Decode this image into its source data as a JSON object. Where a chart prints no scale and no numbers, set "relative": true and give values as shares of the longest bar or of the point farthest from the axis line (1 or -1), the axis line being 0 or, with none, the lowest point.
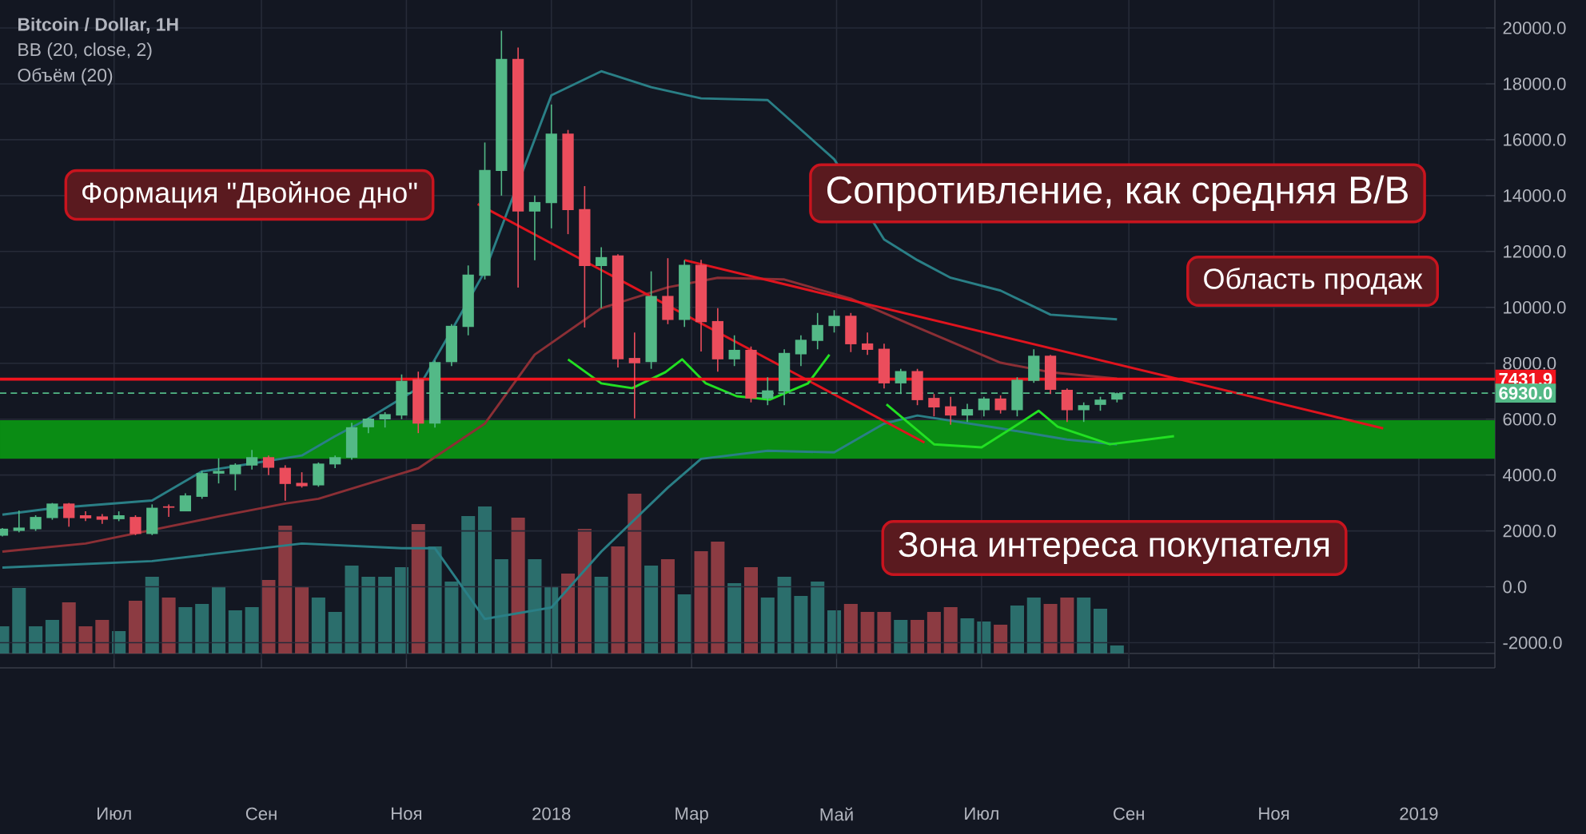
{
  "chart_data": [
    {
      "type": "candlestick",
      "title": "Bitcoin / Dollar, 1H",
      "x": [
        "2017-05-15",
        "2017-05-22",
        "2017-05-29",
        "2017-06-05",
        "2017-06-12",
        "2017-06-19",
        "2017-06-26",
        "2017-07-03",
        "2017-07-10",
        "2017-07-17",
        "2017-07-24",
        "2017-07-31",
        "2017-08-07",
        "2017-08-14",
        "2017-08-21",
        "2017-08-28",
        "2017-09-04",
        "2017-09-11",
        "2017-09-18",
        "2017-09-25",
        "2017-10-02",
        "2017-10-09",
        "2017-10-16",
        "2017-10-23",
        "2017-10-30",
        "2017-11-06",
        "2017-11-13",
        "2017-11-20",
        "2017-11-27",
        "2017-12-04",
        "2017-12-11",
        "2017-12-18",
        "2017-12-25",
        "2018-01-01",
        "2018-01-08",
        "2018-01-15",
        "2018-01-22",
        "2018-01-29",
        "2018-02-05",
        "2018-02-12",
        "2018-02-19",
        "2018-02-26",
        "2018-03-05",
        "2018-03-12",
        "2018-03-19",
        "2018-03-26",
        "2018-04-02",
        "2018-04-09",
        "2018-04-16",
        "2018-04-23",
        "2018-04-30",
        "2018-05-07",
        "2018-05-14",
        "2018-05-21",
        "2018-05-28",
        "2018-06-04",
        "2018-06-11",
        "2018-06-18",
        "2018-06-25",
        "2018-07-02",
        "2018-07-09",
        "2018-07-16",
        "2018-07-23",
        "2018-07-30",
        "2018-08-06",
        "2018-08-13",
        "2018-08-20",
        "2018-08-27"
      ],
      "ohlc": [
        [
          1830,
          2100,
          1800,
          2080
        ],
        [
          2000,
          2730,
          1950,
          2120
        ],
        [
          2060,
          2560,
          2000,
          2500
        ],
        [
          2460,
          3000,
          2400,
          2980
        ],
        [
          2980,
          3000,
          2150,
          2460
        ],
        [
          2560,
          2700,
          2350,
          2450
        ],
        [
          2520,
          2600,
          2250,
          2400
        ],
        [
          2420,
          2700,
          2350,
          2560
        ],
        [
          2500,
          2560,
          1850,
          1890
        ],
        [
          1890,
          2950,
          1850,
          2830
        ],
        [
          2880,
          2950,
          2500,
          2830
        ],
        [
          2700,
          3350,
          2700,
          3270
        ],
        [
          3220,
          4150,
          3150,
          4070
        ],
        [
          4050,
          4600,
          3700,
          4150
        ],
        [
          4030,
          4420,
          3450,
          4370
        ],
        [
          4340,
          4900,
          4200,
          4640
        ],
        [
          4640,
          4700,
          4000,
          4260
        ],
        [
          4260,
          4350,
          3080,
          3680
        ],
        [
          3720,
          4100,
          3550,
          3600
        ],
        [
          3630,
          4450,
          3580,
          4410
        ],
        [
          4380,
          4700,
          4250,
          4640
        ],
        [
          4620,
          5870,
          4550,
          5710
        ],
        [
          5710,
          6050,
          5500,
          6020
        ],
        [
          5990,
          6250,
          5700,
          6180
        ],
        [
          6130,
          7600,
          6000,
          7370
        ],
        [
          7430,
          7700,
          5500,
          5840
        ],
        [
          5840,
          8100,
          5700,
          8040
        ],
        [
          8040,
          9400,
          7900,
          9340
        ],
        [
          9300,
          11500,
          9000,
          11170
        ],
        [
          11130,
          15900,
          11000,
          14920
        ],
        [
          14880,
          19900,
          14000,
          18890
        ],
        [
          18890,
          19300,
          10710,
          13430
        ],
        [
          13430,
          14000,
          11690,
          13770
        ],
        [
          13730,
          17260,
          12830,
          16220
        ],
        [
          16220,
          16350,
          12620,
          13480
        ],
        [
          13520,
          14340,
          9280,
          11480
        ],
        [
          11480,
          12150,
          9970,
          11800
        ],
        [
          11860,
          11900,
          7850,
          8140
        ],
        [
          8190,
          9100,
          6030,
          8000
        ],
        [
          8040,
          11290,
          7800,
          10410
        ],
        [
          10410,
          11760,
          9400,
          9550
        ],
        [
          9550,
          11690,
          9300,
          11520
        ],
        [
          11520,
          11700,
          8420,
          9470
        ],
        [
          9510,
          9970,
          7700,
          8140
        ],
        [
          8140,
          9000,
          7900,
          8480
        ],
        [
          8480,
          8600,
          6600,
          6740
        ],
        [
          6740,
          7500,
          6500,
          7030
        ],
        [
          6990,
          8500,
          6500,
          8370
        ],
        [
          8320,
          9000,
          7900,
          8840
        ],
        [
          8800,
          9800,
          8500,
          9370
        ],
        [
          9330,
          9900,
          9100,
          9700
        ],
        [
          9700,
          9800,
          8400,
          8680
        ],
        [
          8710,
          9100,
          8300,
          8480
        ],
        [
          8520,
          8700,
          7100,
          7280
        ],
        [
          7280,
          7800,
          6900,
          7720
        ],
        [
          7720,
          7800,
          6500,
          6680
        ],
        [
          6760,
          6900,
          6100,
          6420
        ],
        [
          6460,
          6800,
          5800,
          6130
        ],
        [
          6130,
          6550,
          5900,
          6360
        ],
        [
          6320,
          6800,
          6100,
          6740
        ],
        [
          6740,
          6850,
          6200,
          6320
        ],
        [
          6320,
          7500,
          6100,
          7410
        ],
        [
          7370,
          8500,
          7300,
          8270
        ],
        [
          8270,
          8300,
          6900,
          7050
        ],
        [
          7050,
          7100,
          5900,
          6320
        ],
        [
          6320,
          6600,
          5900,
          6500
        ],
        [
          6510,
          6800,
          6300,
          6700
        ],
        [
          6700,
          6950,
          6600,
          6930
        ]
      ],
      "colors": [
        "#53b987",
        "#53b987",
        "#53b987",
        "#53b987",
        "#eb4d5c",
        "#eb4d5c",
        "#eb4d5c",
        "#53b987",
        "#eb4d5c",
        "#53b987",
        "#eb4d5c",
        "#53b987",
        "#53b987",
        "#53b987",
        "#53b987",
        "#53b987",
        "#eb4d5c",
        "#eb4d5c",
        "#eb4d5c",
        "#53b987",
        "#53b987",
        "#53b987",
        "#53b987",
        "#53b987",
        "#53b987",
        "#eb4d5c",
        "#53b987",
        "#53b987",
        "#53b987",
        "#53b987",
        "#53b987",
        "#eb4d5c",
        "#53b987",
        "#53b987",
        "#eb4d5c",
        "#eb4d5c",
        "#53b987",
        "#eb4d5c",
        "#eb4d5c",
        "#53b987",
        "#eb4d5c",
        "#53b987",
        "#eb4d5c",
        "#eb4d5c",
        "#53b987",
        "#eb4d5c",
        "#53b987",
        "#53b987",
        "#53b987",
        "#53b987",
        "#53b987",
        "#eb4d5c",
        "#eb4d5c",
        "#eb4d5c",
        "#53b987",
        "#eb4d5c",
        "#eb4d5c",
        "#eb4d5c",
        "#53b987",
        "#53b987",
        "#eb4d5c",
        "#53b987",
        "#53b987",
        "#eb4d5c",
        "#eb4d5c",
        "#53b987",
        "#53b987",
        "#53b987"
      ],
      "series": [
        {
          "type": "line",
          "color": "#2a7f86",
          "x": [
            "2017-05-15",
            "2017-06-05",
            "2017-07-17",
            "2017-08-07",
            "2017-09-18",
            "2017-10-02",
            "2017-10-16",
            "2017-11-06",
            "2017-11-20",
            "2017-12-04",
            "2017-12-18",
            "2018-01-01",
            "2018-01-22",
            "2018-02-12",
            "2018-03-05",
            "2018-04-02",
            "2018-04-30",
            "2018-05-21",
            "2018-06-04",
            "2018-06-18",
            "2018-07-09",
            "2018-07-30",
            "2018-08-27"
          ],
          "values": [
            2580,
            2810,
            3090,
            4130,
            4700,
            5390,
            6020,
            7110,
            9170,
            11290,
            null,
            17590,
            18450,
            17880,
            17480,
            17420,
            15300,
            12430,
            11690,
            11060,
            10600,
            9740,
            9570
          ]
        },
        {
          "type": "line",
          "color": "#8b2f35",
          "x": [
            "2017-05-15",
            "2017-06-19",
            "2017-08-14",
            "2017-09-11",
            "2017-09-25",
            "2017-11-06",
            "2017-12-04",
            "2017-12-25",
            "2018-01-22",
            "2018-02-19",
            "2018-03-12",
            "2018-04-09",
            "2018-05-07",
            "2018-06-04",
            "2018-07-09",
            "2018-07-30",
            "2018-08-27"
          ],
          "values": [
            1260,
            1550,
            2520,
            2980,
            3150,
            4240,
            5840,
            8310,
            9970,
            10720,
            11060,
            11000,
            10310,
            9280,
            8020,
            7680,
            7450
          ]
        },
        {
          "type": "line",
          "color": "#2a7f86",
          "x": [
            "2017-05-15",
            "2017-07-17",
            "2017-09-18",
            "2017-10-30",
            "2017-11-13",
            "2017-12-04",
            "2018-01-01",
            "2018-01-22",
            "2018-02-19",
            "2018-03-05",
            "2018-04-02",
            "2018-04-30",
            "2018-05-21",
            "2018-06-04",
            "2018-07-09",
            "2018-08-06",
            "2018-08-27"
          ],
          "values": [
            690,
            920,
            1550,
            1380,
            1380,
            -1150,
            -740,
            1260,
            3550,
            4580,
            4870,
            4810,
            5840,
            6130,
            5670,
            5270,
            5100
          ]
        },
        {
          "type": "line",
          "color": "#e0141e",
          "x": [
            "2018-02-26",
            "2018-12-17"
          ],
          "values": [
            11690,
            5670
          ]
        },
        {
          "type": "line",
          "color": "#e0141e",
          "x": [
            "2017-12-01",
            "2018-06-07"
          ],
          "values": [
            13700,
            5160
          ]
        },
        {
          "type": "line",
          "color": "#22e022",
          "x": [
            "2018-01-08",
            "2018-01-22",
            "2018-02-04",
            "2018-02-18",
            "2018-02-25",
            "2018-03-07",
            "2018-03-20",
            "2018-04-03",
            "2018-04-19",
            "2018-04-28"
          ],
          "values": [
            8140,
            7280,
            7110,
            7680,
            8140,
            7280,
            6820,
            6700,
            7280,
            8310
          ]
        },
        {
          "type": "line",
          "color": "#22e022",
          "x": [
            "2018-05-22",
            "2018-06-11",
            "2018-07-01",
            "2018-07-19",
            "2018-07-25",
            "2018-08-02",
            "2018-08-24",
            "2018-09-20"
          ],
          "values": [
            6530,
            5100,
            4990,
            5960,
            6300,
            5730,
            5100,
            5390
          ]
        }
      ],
      "ref_lines": [
        {
          "axis": "y",
          "value": 7431.9,
          "label": "7431.9",
          "color": "#f0141e"
        },
        {
          "axis": "y",
          "value": 6930,
          "label": "6930.0",
          "color": "#53b987",
          "line_style": "dashed"
        }
      ],
      "bands": [
        {
          "axis": "y",
          "from": 4580,
          "to": 5960,
          "color": "#0a8c14"
        }
      ],
      "annotations": [
        "BB (20, close, 2)",
        "Объём (20)",
        "Формация \"Двойное дно\"",
        "Сопротивление, как средняя В/В",
        "Область продаж",
        "Зона интереса покупателя"
      ],
      "xlim": [
        "2017-05-14",
        "2019-02-02"
      ],
      "xticks": [
        {
          "value": "2017-07-01",
          "label": "Июл"
        },
        {
          "value": "2017-09-01",
          "label": "Сен"
        },
        {
          "value": "2017-11-01",
          "label": "Ноя"
        },
        {
          "value": "2018-01-01",
          "label": "2018"
        },
        {
          "value": "2018-03-01",
          "label": "Мар"
        },
        {
          "value": "2018-05-01",
          "label": "Май"
        },
        {
          "value": "2018-07-01",
          "label": "Июл"
        },
        {
          "value": "2018-09-01",
          "label": "Сен"
        },
        {
          "value": "2018-11-01",
          "label": "Ноя"
        },
        {
          "value": "2019-01-01",
          "label": "2019"
        }
      ],
      "ylim": [
        -2900,
        21000
      ],
      "yticks": [
        {
          "value": -2000,
          "label": "-2000.0"
        },
        {
          "value": 0,
          "label": "0.0"
        },
        {
          "value": 2000,
          "label": "2000.0"
        },
        {
          "value": 4000,
          "label": "4000.0"
        },
        {
          "value": 6000,
          "label": "6000.0"
        },
        {
          "value": 8000,
          "label": "8000.0"
        },
        {
          "value": 10000,
          "label": "10000.0"
        },
        {
          "value": 12000,
          "label": "12000.0"
        },
        {
          "value": 14000,
          "label": "14000.0"
        },
        {
          "value": 16000,
          "label": "16000.0"
        },
        {
          "value": 18000,
          "label": "18000.0"
        },
        {
          "value": 20000,
          "label": "20000.0"
        }
      ],
      "grid": true
    },
    {
      "type": "bar",
      "relative": true,
      "categories": [
        null,
        null,
        null,
        null,
        null,
        null,
        null,
        null,
        null,
        null,
        null,
        null,
        null,
        null,
        null,
        null,
        null,
        null,
        null,
        null,
        null,
        null,
        null,
        null,
        null,
        null,
        null,
        null,
        null,
        null,
        null,
        null,
        null,
        null,
        null,
        null,
        null,
        null,
        null,
        null,
        null,
        null,
        null,
        null,
        null,
        null,
        null,
        null,
        null,
        null,
        null,
        null,
        null,
        null,
        null,
        null,
        null,
        null,
        null,
        null,
        null,
        null,
        null,
        null,
        null,
        null,
        null,
        null
      ],
      "values": [
        0.17,
        0.41,
        0.17,
        0.21,
        0.32,
        0.17,
        0.21,
        0.14,
        0.33,
        0.48,
        0.35,
        0.29,
        0.31,
        0.42,
        0.27,
        0.29,
        0.46,
        0.8,
        0.42,
        0.35,
        0.26,
        0.55,
        0.48,
        0.48,
        0.54,
        0.81,
        0.67,
        0.45,
        0.86,
        0.92,
        0.59,
        0.85,
        0.59,
        0.42,
        0.5,
        0.78,
        0.48,
        0.67,
        1,
        0.55,
        0.59,
        0.37,
        0.64,
        0.7,
        0.44,
        0.54,
        0.35,
        0.48,
        0.36,
        0.45,
        0.27,
        0.31,
        0.26,
        0.26,
        0.21,
        0.21,
        0.26,
        0.29,
        0.22,
        0.2,
        0.18,
        0.3,
        0.35,
        0.31,
        0.35,
        0.35,
        0.28,
        0.05
      ],
      "colors": [
        "#2b6e6c",
        "#2b6e6c",
        "#2b6e6c",
        "#2b6e6c",
        "#8c3b42",
        "#8c3b42",
        "#8c3b42",
        "#2b6e6c",
        "#8c3b42",
        "#2b6e6c",
        "#8c3b42",
        "#2b6e6c",
        "#2b6e6c",
        "#2b6e6c",
        "#2b6e6c",
        "#2b6e6c",
        "#8c3b42",
        "#8c3b42",
        "#8c3b42",
        "#2b6e6c",
        "#2b6e6c",
        "#2b6e6c",
        "#2b6e6c",
        "#2b6e6c",
        "#2b6e6c",
        "#8c3b42",
        "#2b6e6c",
        "#2b6e6c",
        "#2b6e6c",
        "#2b6e6c",
        "#2b6e6c",
        "#8c3b42",
        "#2b6e6c",
        "#2b6e6c",
        "#8c3b42",
        "#8c3b42",
        "#2b6e6c",
        "#8c3b42",
        "#8c3b42",
        "#2b6e6c",
        "#8c3b42",
        "#2b6e6c",
        "#8c3b42",
        "#8c3b42",
        "#2b6e6c",
        "#8c3b42",
        "#2b6e6c",
        "#2b6e6c",
        "#2b6e6c",
        "#2b6e6c",
        "#2b6e6c",
        "#8c3b42",
        "#8c3b42",
        "#8c3b42",
        "#2b6e6c",
        "#8c3b42",
        "#8c3b42",
        "#8c3b42",
        "#2b6e6c",
        "#2b6e6c",
        "#8c3b42",
        "#2b6e6c",
        "#2b6e6c",
        "#8c3b42",
        "#8c3b42",
        "#2b6e6c",
        "#2b6e6c",
        "#2b6e6c"
      ]
    }
  ]
}
